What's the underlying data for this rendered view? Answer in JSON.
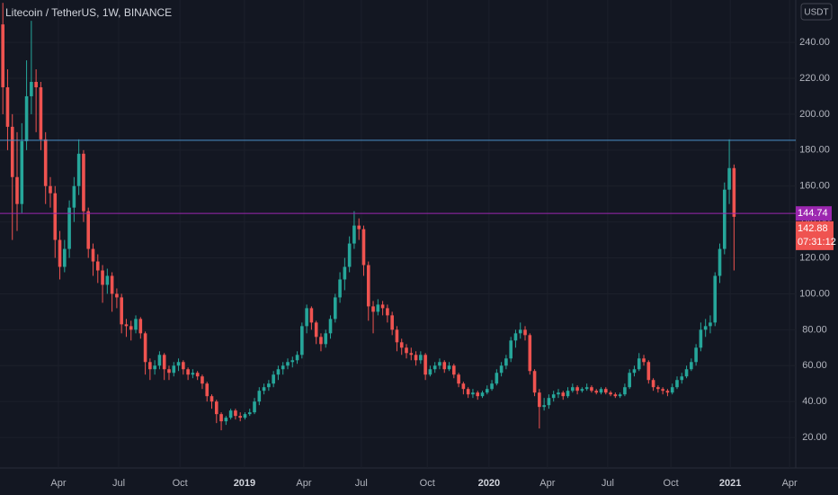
{
  "chart_data": {
    "type": "candlestick",
    "title": "Litecoin / TetherUS, 1W, BINANCE",
    "currency": "USDT",
    "countdown": "07:31:12",
    "up_color": "#26a69a",
    "down_color": "#ef5350",
    "grid": true,
    "open": [
      250,
      215,
      193,
      165,
      150,
      185,
      210,
      218,
      215,
      186,
      160,
      156,
      130,
      115,
      125,
      148,
      160,
      178,
      146,
      125,
      118,
      113,
      105,
      110,
      100,
      98,
      83,
      82,
      80,
      86,
      78,
      62,
      58,
      60,
      66,
      58,
      56,
      60,
      62,
      58,
      55,
      56,
      54,
      50,
      43,
      40,
      33,
      29,
      31,
      35,
      32,
      31,
      33,
      34,
      40,
      46,
      48,
      50,
      55,
      58,
      60,
      62,
      63,
      66,
      82,
      92,
      84,
      76,
      72,
      78,
      86,
      98,
      108,
      115,
      128,
      138,
      136,
      116,
      93,
      90,
      94,
      92,
      88,
      80,
      73,
      70,
      67,
      66,
      63,
      66,
      55,
      58,
      60,
      62,
      58,
      60,
      55,
      50,
      47,
      44,
      45,
      43,
      45,
      47,
      50,
      56,
      60,
      64,
      74,
      78,
      80,
      77,
      57,
      45,
      37,
      38,
      42,
      44,
      45,
      43,
      46,
      48,
      46,
      47,
      48,
      46,
      45,
      47,
      45,
      44,
      43,
      44,
      48,
      56,
      58,
      64,
      62,
      52,
      48,
      47,
      46,
      45,
      48,
      52,
      54,
      58,
      62,
      70,
      80,
      82,
      84,
      110,
      125,
      158,
      170
    ],
    "high": [
      262,
      225,
      200,
      190,
      195,
      230,
      252,
      225,
      218,
      190,
      165,
      160,
      135,
      130,
      152,
      165,
      186,
      180,
      148,
      128,
      122,
      116,
      114,
      112,
      103,
      100,
      86,
      85,
      88,
      87,
      79,
      64,
      63,
      68,
      67,
      60,
      62,
      64,
      63,
      59,
      58,
      57,
      55,
      51,
      44,
      41,
      34,
      32,
      36,
      36,
      34,
      34,
      36,
      42,
      48,
      50,
      52,
      57,
      60,
      62,
      64,
      65,
      68,
      84,
      94,
      93,
      85,
      78,
      80,
      88,
      100,
      112,
      120,
      132,
      146,
      142,
      138,
      118,
      96,
      97,
      96,
      94,
      90,
      82,
      75,
      72,
      70,
      68,
      68,
      67,
      60,
      62,
      64,
      63,
      62,
      61,
      56,
      51,
      48,
      47,
      46,
      46,
      49,
      52,
      58,
      62,
      66,
      76,
      80,
      84,
      82,
      78,
      58,
      47,
      42,
      44,
      46,
      47,
      46,
      48,
      50,
      49,
      48,
      50,
      49,
      47,
      48,
      48,
      46,
      45,
      45,
      50,
      58,
      60,
      67,
      66,
      63,
      53,
      49,
      48,
      47,
      50,
      54,
      56,
      60,
      64,
      72,
      84,
      86,
      88,
      112,
      128,
      162,
      186,
      172
    ],
    "low": [
      200,
      180,
      130,
      135,
      145,
      180,
      200,
      190,
      180,
      150,
      148,
      120,
      108,
      112,
      120,
      140,
      155,
      140,
      120,
      110,
      106,
      95,
      100,
      90,
      92,
      78,
      76,
      74,
      78,
      75,
      55,
      52,
      55,
      58,
      52,
      52,
      54,
      57,
      55,
      52,
      53,
      52,
      47,
      40,
      36,
      28,
      24,
      27,
      30,
      30,
      29,
      30,
      32,
      33,
      38,
      44,
      46,
      48,
      52,
      55,
      58,
      59,
      61,
      64,
      78,
      80,
      72,
      68,
      70,
      75,
      84,
      95,
      102,
      112,
      125,
      130,
      110,
      85,
      78,
      88,
      88,
      84,
      77,
      68,
      66,
      64,
      63,
      60,
      61,
      52,
      54,
      56,
      58,
      56,
      57,
      53,
      48,
      44,
      42,
      42,
      41,
      42,
      44,
      46,
      49,
      54,
      58,
      62,
      70,
      75,
      74,
      55,
      43,
      25,
      35,
      36,
      40,
      42,
      41,
      42,
      45,
      44,
      45,
      46,
      45,
      44,
      44,
      44,
      43,
      42,
      42,
      43,
      47,
      54,
      57,
      60,
      50,
      46,
      45,
      44,
      43,
      44,
      47,
      50,
      53,
      57,
      60,
      68,
      76,
      78,
      82,
      106,
      122,
      150,
      113
    ],
    "close": [
      215,
      193,
      165,
      150,
      185,
      210,
      218,
      215,
      186,
      160,
      156,
      130,
      115,
      125,
      148,
      160,
      178,
      146,
      125,
      118,
      113,
      105,
      110,
      100,
      98,
      83,
      82,
      80,
      86,
      78,
      62,
      58,
      60,
      66,
      58,
      56,
      60,
      62,
      58,
      55,
      56,
      54,
      50,
      43,
      40,
      33,
      29,
      31,
      35,
      32,
      31,
      33,
      34,
      40,
      46,
      48,
      50,
      55,
      58,
      60,
      62,
      63,
      66,
      82,
      92,
      84,
      76,
      72,
      78,
      86,
      98,
      108,
      115,
      128,
      138,
      136,
      116,
      93,
      90,
      94,
      92,
      88,
      80,
      73,
      70,
      67,
      66,
      63,
      66,
      55,
      58,
      60,
      62,
      58,
      60,
      55,
      50,
      47,
      44,
      45,
      43,
      45,
      47,
      50,
      56,
      60,
      64,
      74,
      78,
      80,
      77,
      57,
      45,
      37,
      38,
      42,
      44,
      45,
      43,
      46,
      48,
      46,
      47,
      48,
      46,
      45,
      47,
      45,
      44,
      43,
      44,
      48,
      56,
      58,
      64,
      62,
      52,
      48,
      47,
      46,
      45,
      48,
      52,
      54,
      58,
      62,
      70,
      80,
      82,
      84,
      110,
      125,
      158,
      170,
      142.88
    ],
    "price_lines": [
      {
        "value": 185.5,
        "color": "#4a90c8"
      },
      {
        "value": 144.74,
        "color": "#9c27b0"
      }
    ],
    "ylim": [
      3,
      263.6
    ],
    "yticks": [
      {
        "value": 20,
        "label": "20.00"
      },
      {
        "value": 40,
        "label": "40.00"
      },
      {
        "value": 60,
        "label": "60.00"
      },
      {
        "value": 80,
        "label": "80.00"
      },
      {
        "value": 100,
        "label": "100.00"
      },
      {
        "value": 120,
        "label": "120.00"
      },
      {
        "value": 140,
        "label": "140.00"
      },
      {
        "value": 160,
        "label": "160.00"
      },
      {
        "value": 180,
        "label": "180.00"
      },
      {
        "value": 200,
        "label": "200.00"
      },
      {
        "value": 220,
        "label": "220.00"
      },
      {
        "value": 240,
        "label": "240.00"
      }
    ],
    "xlim": [
      -0.6,
      167
    ],
    "xticks": [
      {
        "value": 11.7,
        "label": "Apr"
      },
      {
        "value": 24.4,
        "label": "Jul"
      },
      {
        "value": 37.3,
        "label": "Oct"
      },
      {
        "value": 50.9,
        "label": "2019"
      },
      {
        "value": 63.4,
        "label": "Apr"
      },
      {
        "value": 75.5,
        "label": "Jul"
      },
      {
        "value": 89.4,
        "label": "Oct"
      },
      {
        "value": 102.4,
        "label": "2020"
      },
      {
        "value": 114.7,
        "label": "Apr"
      },
      {
        "value": 127.4,
        "label": "Jul"
      },
      {
        "value": 140.7,
        "label": "Oct"
      },
      {
        "value": 153.2,
        "label": "2021"
      },
      {
        "value": 165.7,
        "label": "Apr"
      }
    ]
  }
}
